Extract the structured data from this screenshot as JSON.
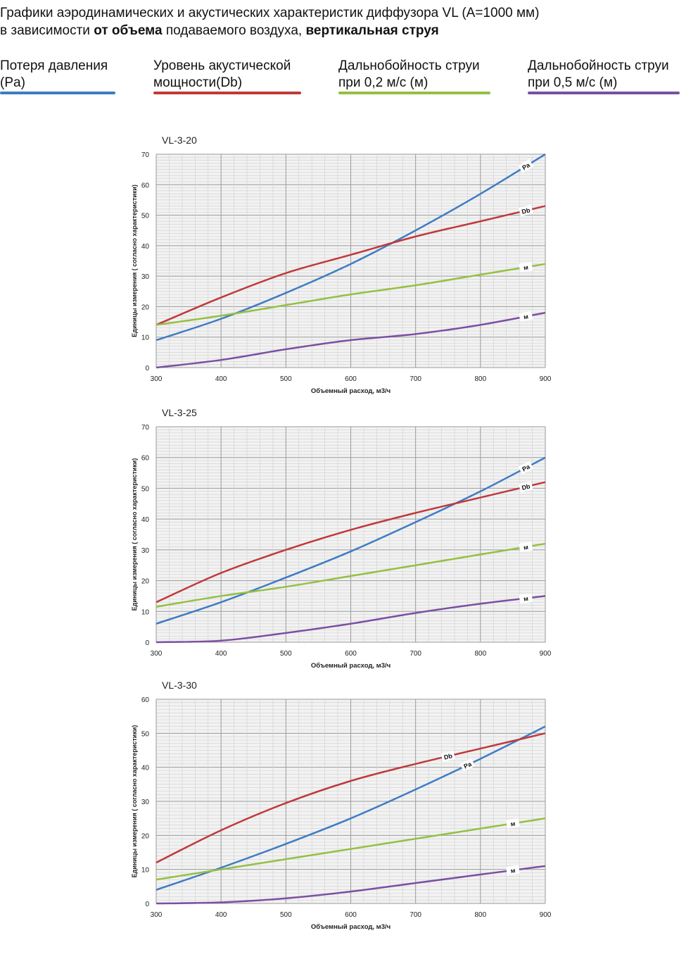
{
  "header": {
    "line1": "Графики аэродинамических и акустических характеристик  диффузора VL (A=1000 мм)",
    "line2_a": "в зависимости ",
    "line2_b": "от объема",
    "line2_c": " подаваемого воздуха, ",
    "line2_d": "вертикальная струя"
  },
  "legend": [
    {
      "line1": "Потеря давления",
      "line2": "(Pa)",
      "color": "#3e7cc4"
    },
    {
      "line1": "Уровень акустической",
      "line2": "мощности(Db)",
      "color": "#c0393b"
    },
    {
      "line1": "Дальнобойность струи",
      "line2": "при 0,2 м/с (м)",
      "color": "#94c043"
    },
    {
      "line1": "Дальнобойность струи",
      "line2": "при 0,5 м/с (м)",
      "color": "#7b4fa3"
    }
  ],
  "chart_data": [
    {
      "type": "line",
      "title": "VL-3-20",
      "xlabel": "Объемный расход, м3/ч",
      "ylabel": "Единицы измерения ( согласно характеристики)",
      "xlim": [
        300,
        900
      ],
      "ylim": [
        0,
        70
      ],
      "grid": true,
      "x": [
        300,
        400,
        500,
        600,
        700,
        800,
        900
      ],
      "series": [
        {
          "name": "Pa",
          "label": "Pa",
          "label_x": 870,
          "color": "#3e7cc4",
          "values": [
            9,
            16,
            24.5,
            34,
            45,
            57,
            70
          ]
        },
        {
          "name": "Db",
          "label": "Db",
          "label_x": 870,
          "color": "#c0393b",
          "values": [
            14,
            23,
            31,
            37,
            43,
            48,
            53
          ]
        },
        {
          "name": "м (0,2 м/с)",
          "label": "м",
          "label_x": 870,
          "color": "#94c043",
          "values": [
            14,
            17,
            20.5,
            24,
            27,
            30.5,
            34
          ]
        },
        {
          "name": "м (0,5 м/с)",
          "label": "м",
          "label_x": 870,
          "color": "#7b4fa3",
          "values": [
            0,
            2.5,
            6,
            9,
            11,
            14,
            18
          ]
        }
      ]
    },
    {
      "type": "line",
      "title": "VL-3-25",
      "xlabel": "Объемный расход, м3/ч",
      "ylabel": "Единицы измерения ( согласно характеристики)",
      "xlim": [
        300,
        900
      ],
      "ylim": [
        0,
        70
      ],
      "grid": true,
      "x": [
        300,
        400,
        500,
        600,
        700,
        800,
        900
      ],
      "series": [
        {
          "name": "Pa",
          "label": "Pa",
          "label_x": 870,
          "color": "#3e7cc4",
          "values": [
            6,
            13,
            21,
            29.5,
            39,
            49,
            60
          ]
        },
        {
          "name": "Db",
          "label": "Db",
          "label_x": 870,
          "color": "#c0393b",
          "values": [
            13,
            22.5,
            30,
            36.5,
            42,
            47,
            52
          ]
        },
        {
          "name": "м (0,2 м/с)",
          "label": "м",
          "label_x": 870,
          "color": "#94c043",
          "values": [
            11.5,
            15,
            18,
            21.5,
            25,
            28.5,
            32
          ]
        },
        {
          "name": "м (0,5 м/с)",
          "label": "м",
          "label_x": 870,
          "color": "#7b4fa3",
          "values": [
            0,
            0.5,
            3,
            6,
            9.5,
            12.5,
            15
          ]
        }
      ]
    },
    {
      "type": "line",
      "title": "VL-3-30",
      "xlabel": "Объемный расход, м3/ч",
      "ylabel": "Единицы измерения ( согласно характеристики)",
      "xlim": [
        300,
        900
      ],
      "ylim": [
        0,
        60
      ],
      "grid": true,
      "x": [
        300,
        400,
        500,
        600,
        700,
        800,
        900
      ],
      "series": [
        {
          "name": "Pa",
          "label": "Pa",
          "label_x": 780,
          "color": "#3e7cc4",
          "values": [
            4,
            10.5,
            17.5,
            25,
            33.5,
            42.5,
            52
          ]
        },
        {
          "name": "Db",
          "label": "Db",
          "label_x": 750,
          "color": "#c0393b",
          "values": [
            12,
            21.5,
            29.5,
            36,
            41,
            45.5,
            50
          ]
        },
        {
          "name": "м (0,2 м/с)",
          "label": "м",
          "label_x": 850,
          "color": "#94c043",
          "values": [
            7,
            10,
            13,
            16,
            19,
            22,
            25
          ]
        },
        {
          "name": "м (0,5 м/с)",
          "label": "м",
          "label_x": 850,
          "color": "#7b4fa3",
          "values": [
            0,
            0.3,
            1.5,
            3.5,
            6,
            8.5,
            11
          ]
        }
      ]
    }
  ]
}
